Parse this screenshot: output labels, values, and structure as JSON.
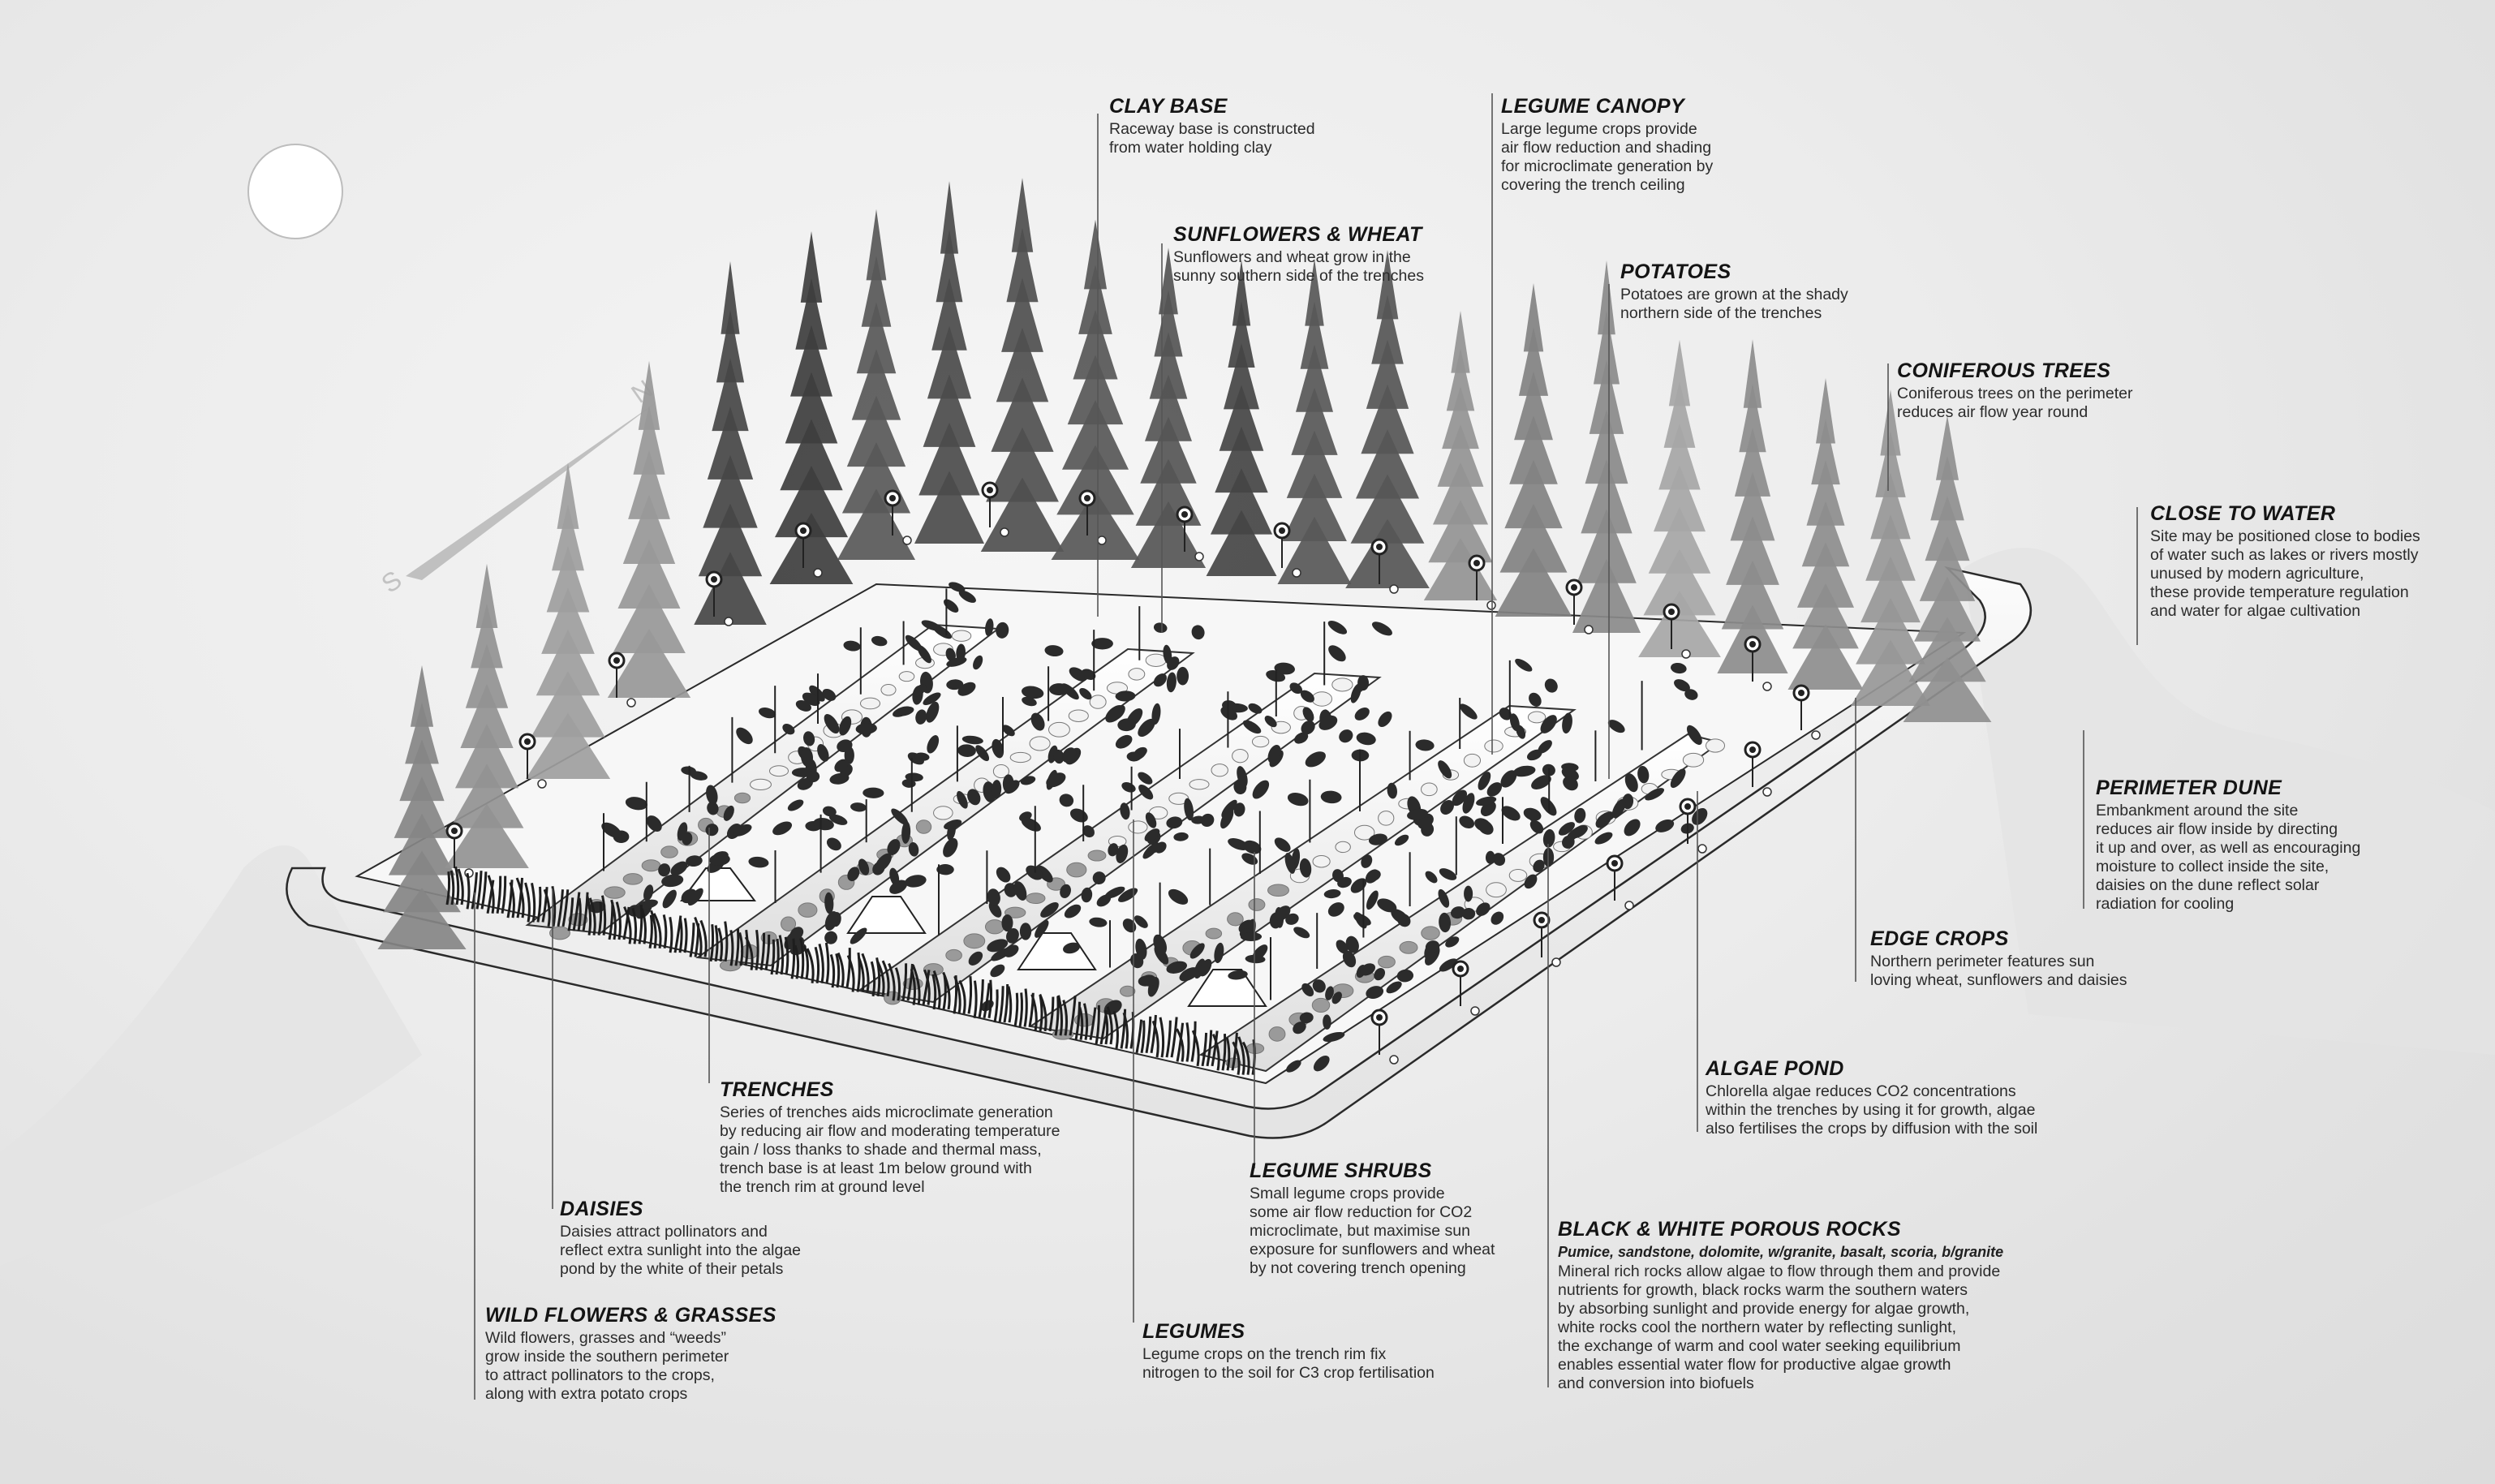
{
  "compass": {
    "north": "N",
    "south": "S"
  },
  "labels": {
    "clay_base": {
      "title": "CLAY BASE",
      "text": "Raceway base is constructed\nfrom water holding clay"
    },
    "legume_canopy": {
      "title": "LEGUME CANOPY",
      "text": "Large legume crops provide\nair flow reduction and shading\nfor microclimate generation by\ncovering the trench ceiling"
    },
    "sunflowers_wheat": {
      "title": "SUNFLOWERS & WHEAT",
      "text": "Sunflowers and wheat grow in the\nsunny southern side of the trenches"
    },
    "potatoes": {
      "title": "POTATOES",
      "text": "Potatoes are grown at the shady\nnorthern side of the trenches"
    },
    "coniferous_trees": {
      "title": "CONIFEROUS TREES",
      "text": "Coniferous trees on the perimeter\nreduces air flow year round"
    },
    "close_to_water": {
      "title": "CLOSE TO WATER",
      "text": "Site may be positioned close to bodies\nof water such as lakes or rivers mostly\nunused by modern agriculture,\nthese provide temperature regulation\nand water for algae cultivation"
    },
    "perimeter_dune": {
      "title": "PERIMETER DUNE",
      "text": "Embankment around the site\nreduces air flow inside by directing\nit up and over, as well as encouraging\nmoisture to collect inside the site,\ndaisies on the dune reflect solar\nradiation for cooling"
    },
    "edge_crops": {
      "title": "EDGE CROPS",
      "text": "Northern perimeter features sun\nloving wheat, sunflowers and daisies"
    },
    "algae_pond": {
      "title": "ALGAE POND",
      "text": "Chlorella algae reduces CO2 concentrations\nwithin the trenches by using it for growth, algae\nalso fertilises the crops by diffusion with the soil"
    },
    "trenches": {
      "title": "TRENCHES",
      "text": "Series of trenches aids microclimate generation\nby reducing air flow and moderating temperature\ngain / loss thanks to shade and thermal mass,\ntrench base is at least 1m below ground with\nthe trench rim at ground level"
    },
    "legume_shrubs": {
      "title": "LEGUME SHRUBS",
      "text": "Small legume crops provide\nsome air flow reduction for CO2\nmicroclimate, but maximise sun\nexposure for sunflowers and wheat\nby not covering trench opening"
    },
    "daisies": {
      "title": "DAISIES",
      "text": "Daisies attract pollinators and\nreflect extra sunlight into the algae\npond by the white of their petals"
    },
    "black_white_rocks": {
      "title": "BLACK & WHITE POROUS ROCKS",
      "subtitle": "Pumice, sandstone, dolomite, w/granite, basalt, scoria, b/granite",
      "text": "Mineral rich rocks allow algae to flow through them and provide\nnutrients for growth, black rocks warm the southern waters\nby absorbing sunlight and provide energy for algae growth,\nwhite rocks cool the northern water by reflecting sunlight,\nthe exchange of warm and cool water seeking equilibrium\nenables essential water flow for productive algae growth\nand conversion into biofuels"
    },
    "legumes": {
      "title": "LEGUMES",
      "text": "Legume crops on the trench rim fix\nnitrogen to the soil for C3 crop fertilisation"
    },
    "wild_flowers": {
      "title": "WILD FLOWERS & GRASSES",
      "text": "Wild flowers, grasses and “weeds”\ngrow inside the southern perimeter\nto attract pollinators to the crops,\nalong with extra potato crops"
    }
  },
  "colors": {
    "ink": "#141414",
    "tree_dark": "#3a3a3a",
    "tree_light": "#a8a8a8",
    "ground": "#f4f4f4",
    "outline": "#2a2a2a"
  }
}
